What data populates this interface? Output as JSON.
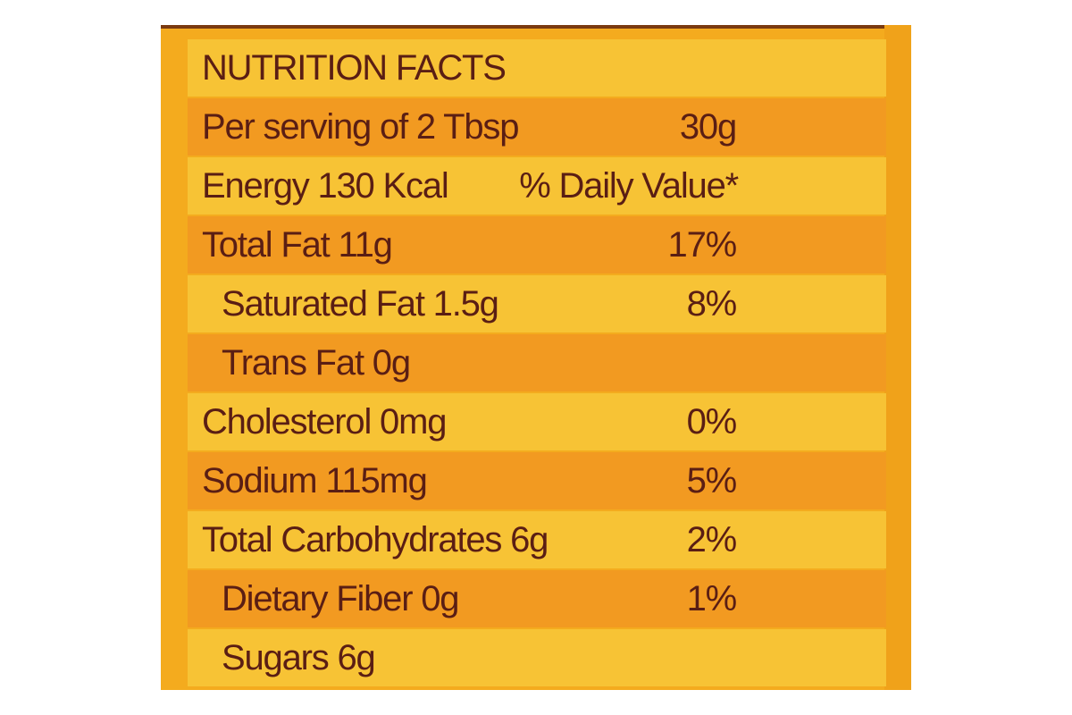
{
  "label": {
    "title": "NUTRITION FACTS",
    "rows": [
      {
        "name": "Per serving of 2 Tbsp",
        "value": "30g"
      },
      {
        "name": "Energy 130 Kcal",
        "value": "% Daily Value*"
      },
      {
        "name": "Total Fat 11g",
        "value": "17%"
      },
      {
        "name": "Saturated Fat 1.5g",
        "value": "8%"
      },
      {
        "name": "Trans Fat 0g",
        "value": ""
      },
      {
        "name": "Cholesterol 0mg",
        "value": "0%"
      },
      {
        "name": "Sodium 115mg",
        "value": "5%"
      },
      {
        "name": "Total Carbohydrates 6g",
        "value": "2%"
      },
      {
        "name": "Dietary Fiber 0g",
        "value": "1%"
      },
      {
        "name": "Sugars 6g",
        "value": ""
      }
    ]
  },
  "colors": {
    "panel": "#f4ab1e",
    "row_light": "#f7c335",
    "row_dark": "#f29a21",
    "text": "#5a1e14"
  }
}
